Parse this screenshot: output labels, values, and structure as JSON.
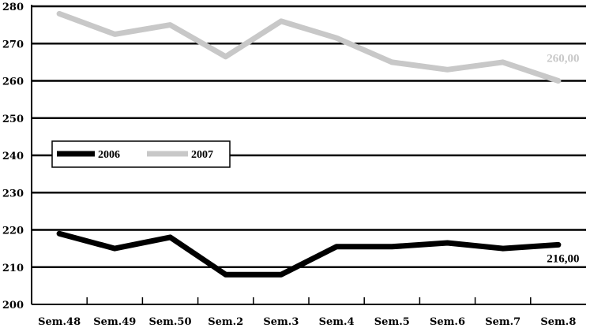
{
  "chart_data": {
    "type": "line",
    "categories": [
      "Sem.48",
      "Sem.49",
      "Sem.50",
      "Sem.2",
      "Sem.3",
      "Sem.4",
      "Sem.5",
      "Sem.6",
      "Sem.7",
      "Sem.8"
    ],
    "series": [
      {
        "name": "2006",
        "color": "#000000",
        "values": [
          219,
          215,
          218,
          208,
          208,
          215.5,
          215.5,
          216.5,
          215,
          216
        ],
        "end_label": "216,00"
      },
      {
        "name": "2007",
        "color": "#c8c8c8",
        "values": [
          278,
          272.5,
          275,
          266.5,
          276,
          271.5,
          265,
          263,
          265,
          260
        ],
        "end_label": "260,00"
      }
    ],
    "ylim": [
      200,
      280
    ],
    "yticks": [
      200,
      210,
      220,
      230,
      240,
      250,
      260,
      270,
      280
    ],
    "grid": true,
    "legend": "middle-left",
    "title": "",
    "xlabel": "",
    "ylabel": ""
  }
}
